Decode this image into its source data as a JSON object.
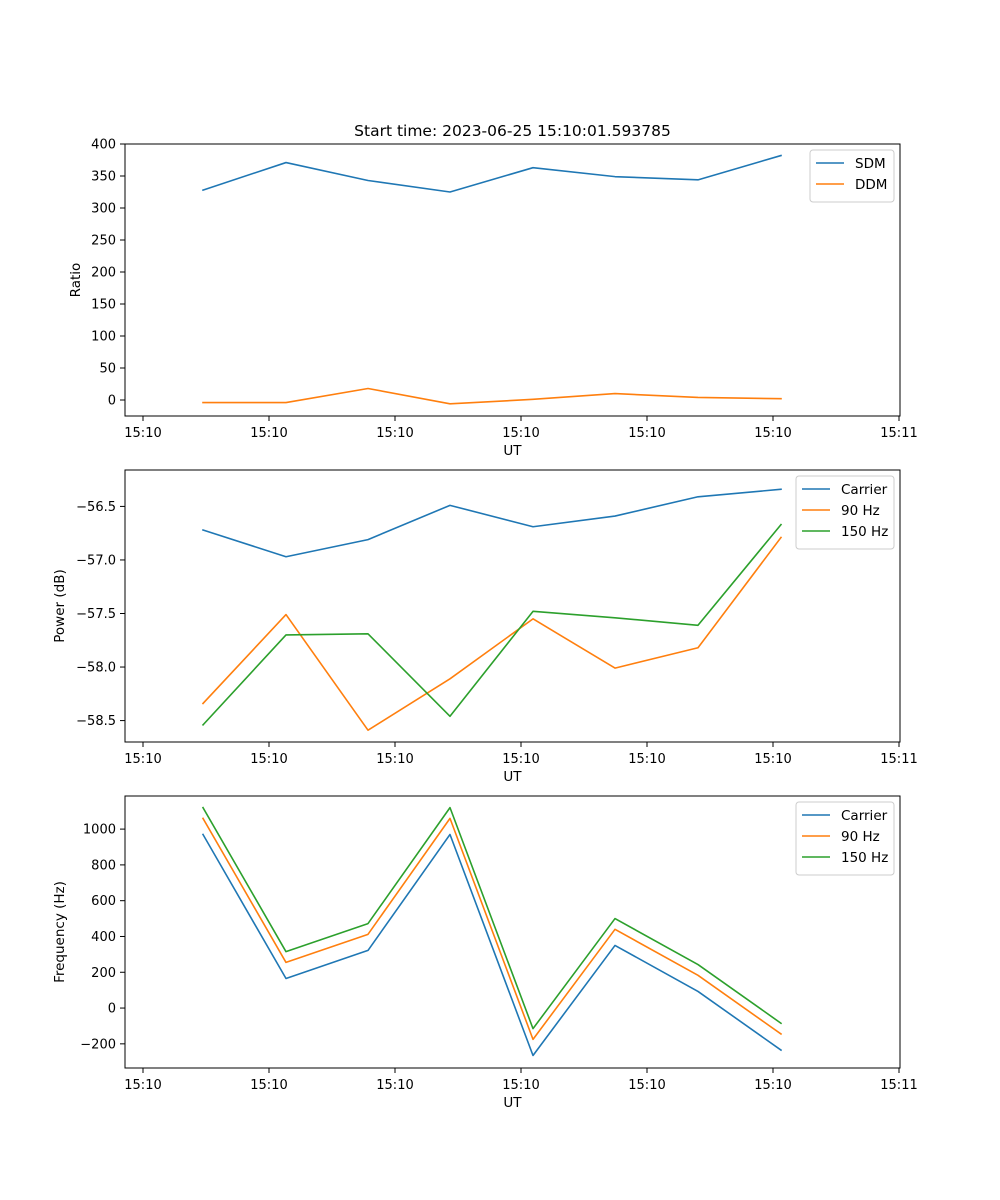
{
  "chart_data": [
    {
      "type": "line",
      "title": "Start time: 2023-06-25 15:10:01.593785",
      "xlabel": "UT",
      "ylabel": "Ratio",
      "x_tick_labels": [
        "15:10",
        "15:10",
        "15:10",
        "15:10",
        "15:10",
        "15:10",
        "15:11"
      ],
      "y_ticks": [
        0,
        50,
        100,
        150,
        200,
        250,
        300,
        350,
        400
      ],
      "ylim": [
        -25,
        400
      ],
      "legend_position": "top-right",
      "series": [
        {
          "name": "SDM",
          "color": "#1f77b4",
          "values": [
            328,
            371,
            343,
            325,
            363,
            349,
            344,
            382
          ]
        },
        {
          "name": "DDM",
          "color": "#ff7f0e",
          "values": [
            -4,
            -4,
            18,
            -6,
            1,
            10,
            4,
            2
          ]
        }
      ]
    },
    {
      "type": "line",
      "title": "",
      "xlabel": "UT",
      "ylabel": "Power (dB)",
      "x_tick_labels": [
        "15:10",
        "15:10",
        "15:10",
        "15:10",
        "15:10",
        "15:10",
        "15:11"
      ],
      "y_ticks": [
        -56.5,
        -57.0,
        -57.5,
        -58.0,
        -58.5
      ],
      "y_tick_labels": [
        "−56.5",
        "−57.0",
        "−57.5",
        "−58.0",
        "−58.5"
      ],
      "ylim": [
        -58.7,
        -56.16
      ],
      "legend_position": "top-right",
      "series": [
        {
          "name": "Carrier",
          "color": "#1f77b4",
          "values": [
            -56.72,
            -56.97,
            -56.81,
            -56.49,
            -56.69,
            -56.59,
            -56.41,
            -56.34
          ]
        },
        {
          "name": "90 Hz",
          "color": "#ff7f0e",
          "values": [
            -58.34,
            -57.51,
            -58.59,
            -58.11,
            -57.55,
            -58.01,
            -57.82,
            -56.79
          ]
        },
        {
          "name": "150 Hz",
          "color": "#2ca02c",
          "values": [
            -58.54,
            -57.7,
            -57.69,
            -58.46,
            -57.48,
            -57.54,
            -57.61,
            -56.67
          ]
        }
      ]
    },
    {
      "type": "line",
      "title": "",
      "xlabel": "UT",
      "ylabel": "Frequency (Hz)",
      "x_tick_labels": [
        "15:10",
        "15:10",
        "15:10",
        "15:10",
        "15:10",
        "15:10",
        "15:11"
      ],
      "y_ticks": [
        -200,
        0,
        200,
        400,
        600,
        800,
        1000
      ],
      "y_tick_labels": [
        "−200",
        "0",
        "200",
        "400",
        "600",
        "800",
        "1000"
      ],
      "ylim": [
        -335,
        1185
      ],
      "legend_position": "top-right",
      "series": [
        {
          "name": "Carrier",
          "color": "#1f77b4",
          "values": [
            970,
            165,
            322,
            970,
            -265,
            350,
            93,
            -235
          ]
        },
        {
          "name": "90 Hz",
          "color": "#ff7f0e",
          "values": [
            1060,
            255,
            412,
            1060,
            -175,
            440,
            183,
            -145
          ]
        },
        {
          "name": "150 Hz",
          "color": "#2ca02c",
          "values": [
            1120,
            315,
            472,
            1120,
            -115,
            500,
            243,
            -85
          ]
        }
      ]
    }
  ]
}
